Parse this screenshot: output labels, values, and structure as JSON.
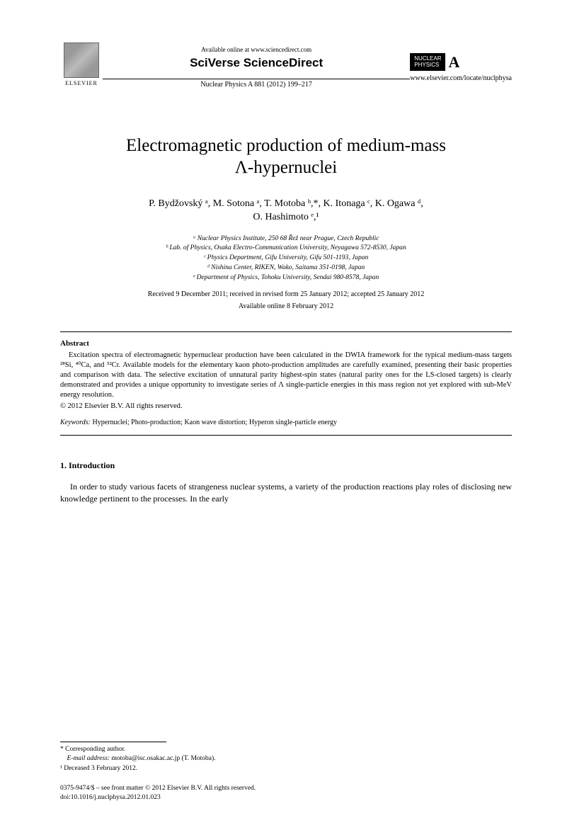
{
  "header": {
    "publisher": "ELSEVIER",
    "available_text": "Available online at www.sciencedirect.com",
    "platform": "SciVerse ScienceDirect",
    "journal_ref": "Nuclear Physics A 881 (2012) 199–217",
    "journal_logo_line1": "NUCLEAR",
    "journal_logo_line2": "PHYSICS",
    "journal_logo_letter": "A",
    "journal_url": "www.elsevier.com/locate/nuclphysa"
  },
  "article": {
    "title_line1": "Electromagnetic production of medium-mass",
    "title_line2": "Λ-hypernuclei",
    "authors_line1": "P. Bydžovský ᵃ, M. Sotona ᵃ, T. Motoba ᵇ,*, K. Itonaga ᶜ, K. Ogawa ᵈ,",
    "authors_line2": "O. Hashimoto ᵉ,¹",
    "affiliations": {
      "a": "ᵃ Nuclear Physics Institute, 250 68 Řež near Prague, Czech Republic",
      "b": "ᵇ Lab. of Physics, Osaka Electro-Communication University, Neyagawa 572-8530, Japan",
      "c": "ᶜ Physics Department, Gifu University, Gifu 501-1193, Japan",
      "d": "ᵈ Nishina Center, RIKEN, Wako, Saitama 351-0198, Japan",
      "e": "ᵉ Department of Physics, Tohoku University, Sendai 980-8578, Japan"
    },
    "dates": "Received 9 December 2011; received in revised form 25 January 2012; accepted 25 January 2012",
    "available_online": "Available online 8 February 2012"
  },
  "abstract": {
    "heading": "Abstract",
    "text": "Excitation spectra of electromagnetic hypernuclear production have been calculated in the DWIA framework for the typical medium-mass targets ²⁸Si, ⁴⁰Ca, and ⁵²Cr. Available models for the elementary kaon photo-production amplitudes are carefully examined, presenting their basic properties and comparison with data. The selective excitation of unnatural parity highest-spin states (natural parity ones for the LS-closed targets) is clearly demonstrated and provides a unique opportunity to investigate series of Λ single-particle energies in this mass region not yet explored with sub-MeV energy resolution.",
    "copyright": "© 2012 Elsevier B.V. All rights reserved.",
    "keywords_label": "Keywords:",
    "keywords": " Hypernuclei; Photo-production; Kaon wave distortion; Hyperon single-particle energy"
  },
  "section1": {
    "heading": "1. Introduction",
    "p1": "In order to study various facets of strangeness nuclear systems, a variety of the production reactions play roles of disclosing new knowledge pertinent to the processes. In the early"
  },
  "footnotes": {
    "corresponding": "* Corresponding author.",
    "email_label": "E-mail address:",
    "email": " motoba@isc.osakac.ac.jp (T. Motoba).",
    "note1": "¹ Deceased 3 February 2012."
  },
  "footer": {
    "line1": "0375-9474/$ – see front matter © 2012 Elsevier B.V. All rights reserved.",
    "line2": "doi:10.1016/j.nuclphysa.2012.01.023"
  }
}
